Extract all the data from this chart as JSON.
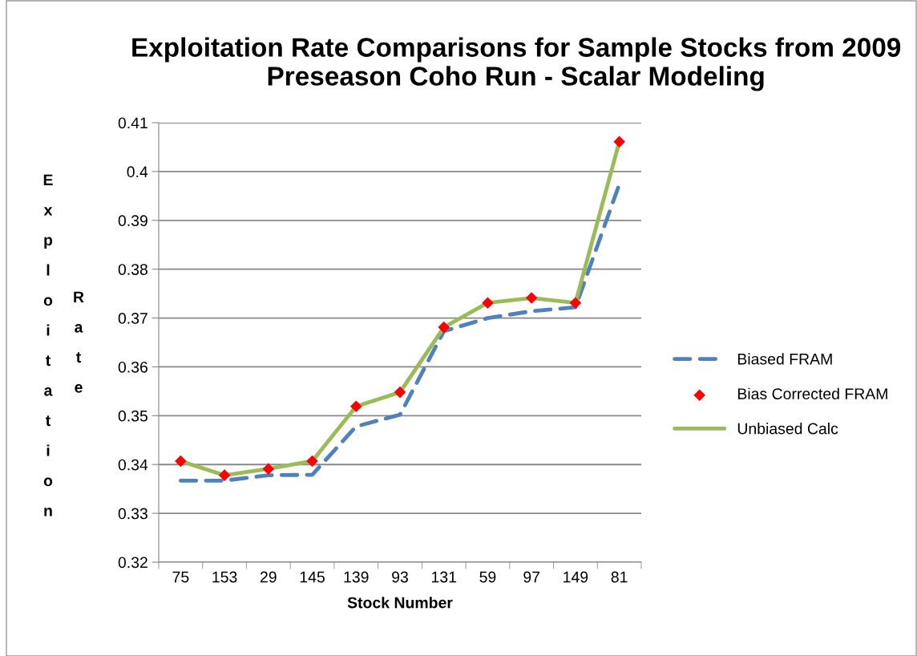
{
  "chart_data": {
    "type": "line",
    "title": "Exploitation Rate Comparisons for Sample Stocks from 2009 Preseason Coho Run - Scalar Modeling",
    "xlabel": "Stock Number",
    "ylabel": "Exploitation Rate",
    "categories": [
      "75",
      "153",
      "29",
      "145",
      "139",
      "93",
      "131",
      "59",
      "97",
      "149",
      "81"
    ],
    "series": [
      {
        "name": "Biased FRAM",
        "color": "#4f81bd",
        "line_style": "dashed",
        "marker": "none",
        "values": [
          0.3367,
          0.3367,
          0.3378,
          0.3379,
          0.3478,
          0.3502,
          0.3673,
          0.37,
          0.3714,
          0.3722,
          0.3974
        ]
      },
      {
        "name": "Bias Corrected FRAM",
        "color": "#ff0000",
        "type": "scatter",
        "marker": "diamond",
        "values": [
          0.3407,
          0.3378,
          0.3391,
          0.3407,
          0.3519,
          0.3548,
          0.3681,
          0.3731,
          0.3741,
          0.3731,
          0.4061
        ]
      },
      {
        "name": "Unbiased Calc",
        "color": "#9bbb59",
        "line_style": "solid",
        "marker": "none",
        "values": [
          0.3407,
          0.3378,
          0.3391,
          0.3407,
          0.3519,
          0.3548,
          0.3681,
          0.3731,
          0.3741,
          0.3731,
          0.4061
        ]
      }
    ],
    "ylim": [
      0.32,
      0.41
    ],
    "yticks": [
      0.32,
      0.33,
      0.34,
      0.35,
      0.36,
      0.37,
      0.38,
      0.39,
      0.4,
      0.41
    ],
    "grid": "y",
    "legend": "right"
  }
}
